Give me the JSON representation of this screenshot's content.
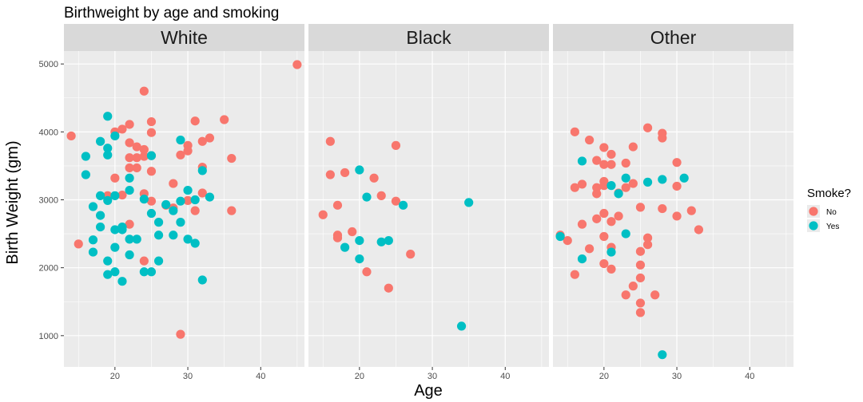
{
  "chart_data": {
    "type": "scatter",
    "title": "Birthweight by age and smoking",
    "xlabel": "Age",
    "ylabel": "Birth Weight (gm)",
    "xlim": [
      13,
      46
    ],
    "ylim": [
      540,
      5190
    ],
    "x_ticks": [
      20,
      30,
      40
    ],
    "y_ticks": [
      1000,
      2000,
      3000,
      4000,
      5000
    ],
    "grid": true,
    "legend": {
      "title": "Smoke?",
      "position": "right",
      "entries": [
        {
          "label": "No",
          "color": "#F8766D"
        },
        {
          "label": "Yes",
          "color": "#00BFC4"
        }
      ]
    },
    "panels": [
      {
        "name": "White",
        "series": [
          {
            "name": "No",
            "points": [
              [
                14,
                3940
              ],
              [
                15,
                2350
              ],
              [
                19,
                3060
              ],
              [
                20,
                3320
              ],
              [
                20,
                4000
              ],
              [
                21,
                3070
              ],
              [
                21,
                4040
              ],
              [
                22,
                4110
              ],
              [
                22,
                3840
              ],
              [
                22,
                3620
              ],
              [
                22,
                3470
              ],
              [
                22,
                2640
              ],
              [
                23,
                3780
              ],
              [
                23,
                3620
              ],
              [
                23,
                3470
              ],
              [
                24,
                4600
              ],
              [
                24,
                3740
              ],
              [
                24,
                3640
              ],
              [
                24,
                3090
              ],
              [
                24,
                2100
              ],
              [
                25,
                4150
              ],
              [
                25,
                3990
              ],
              [
                25,
                3420
              ],
              [
                25,
                2980
              ],
              [
                25,
                3650
              ],
              [
                27,
                2920
              ],
              [
                28,
                3240
              ],
              [
                28,
                2880
              ],
              [
                29,
                1020
              ],
              [
                29,
                3660
              ],
              [
                30,
                3800
              ],
              [
                30,
                3720
              ],
              [
                30,
                2990
              ],
              [
                31,
                4160
              ],
              [
                31,
                2840
              ],
              [
                32,
                3860
              ],
              [
                32,
                3480
              ],
              [
                32,
                3100
              ],
              [
                33,
                3910
              ],
              [
                35,
                4180
              ],
              [
                36,
                3610
              ],
              [
                36,
                2840
              ],
              [
                45,
                4990
              ]
            ]
          },
          {
            "name": "Yes",
            "points": [
              [
                16,
                3640
              ],
              [
                16,
                3370
              ],
              [
                17,
                2900
              ],
              [
                17,
                2410
              ],
              [
                17,
                2230
              ],
              [
                18,
                3860
              ],
              [
                18,
                3060
              ],
              [
                18,
                2770
              ],
              [
                18,
                2600
              ],
              [
                19,
                4230
              ],
              [
                19,
                3760
              ],
              [
                19,
                3660
              ],
              [
                19,
                2990
              ],
              [
                19,
                2100
              ],
              [
                19,
                1900
              ],
              [
                20,
                3940
              ],
              [
                20,
                3060
              ],
              [
                20,
                2560
              ],
              [
                20,
                2300
              ],
              [
                20,
                1940
              ],
              [
                21,
                2560
              ],
              [
                21,
                2600
              ],
              [
                21,
                1800
              ],
              [
                22,
                3320
              ],
              [
                22,
                3140
              ],
              [
                22,
                2420
              ],
              [
                22,
                2190
              ],
              [
                23,
                2420
              ],
              [
                24,
                3010
              ],
              [
                24,
                1940
              ],
              [
                25,
                3650
              ],
              [
                25,
                2800
              ],
              [
                25,
                1940
              ],
              [
                26,
                2670
              ],
              [
                26,
                2480
              ],
              [
                26,
                2100
              ],
              [
                27,
                2930
              ],
              [
                28,
                2840
              ],
              [
                28,
                2480
              ],
              [
                29,
                3880
              ],
              [
                29,
                2980
              ],
              [
                29,
                2670
              ],
              [
                30,
                3140
              ],
              [
                30,
                2420
              ],
              [
                31,
                3000
              ],
              [
                31,
                2360
              ],
              [
                32,
                3430
              ],
              [
                32,
                1820
              ],
              [
                33,
                3040
              ]
            ]
          }
        ]
      },
      {
        "name": "Black",
        "series": [
          {
            "name": "No",
            "points": [
              [
                15,
                2780
              ],
              [
                16,
                3860
              ],
              [
                16,
                3370
              ],
              [
                17,
                2920
              ],
              [
                17,
                2480
              ],
              [
                17,
                2440
              ],
              [
                18,
                3400
              ],
              [
                19,
                2530
              ],
              [
                21,
                1940
              ],
              [
                22,
                3320
              ],
              [
                23,
                3060
              ],
              [
                24,
                1700
              ],
              [
                25,
                3800
              ],
              [
                25,
                2980
              ],
              [
                27,
                2200
              ]
            ]
          },
          {
            "name": "Yes",
            "points": [
              [
                18,
                2300
              ],
              [
                20,
                3440
              ],
              [
                20,
                2400
              ],
              [
                20,
                2130
              ],
              [
                21,
                3040
              ],
              [
                23,
                2380
              ],
              [
                24,
                2400
              ],
              [
                26,
                2920
              ],
              [
                34,
                1140
              ],
              [
                35,
                2960
              ]
            ]
          }
        ]
      },
      {
        "name": "Other",
        "series": [
          {
            "name": "No",
            "points": [
              [
                14,
                2480
              ],
              [
                15,
                2400
              ],
              [
                16,
                4000
              ],
              [
                16,
                3180
              ],
              [
                16,
                1900
              ],
              [
                17,
                3230
              ],
              [
                17,
                2640
              ],
              [
                18,
                3880
              ],
              [
                18,
                2280
              ],
              [
                19,
                3580
              ],
              [
                19,
                3180
              ],
              [
                19,
                3090
              ],
              [
                19,
                2720
              ],
              [
                20,
                3770
              ],
              [
                20,
                3520
              ],
              [
                20,
                3270
              ],
              [
                20,
                3210
              ],
              [
                20,
                2800
              ],
              [
                20,
                2460
              ],
              [
                20,
                2060
              ],
              [
                21,
                3670
              ],
              [
                21,
                3520
              ],
              [
                21,
                2680
              ],
              [
                21,
                2300
              ],
              [
                21,
                1980
              ],
              [
                22,
                3100
              ],
              [
                22,
                2760
              ],
              [
                23,
                3540
              ],
              [
                23,
                3180
              ],
              [
                23,
                1600
              ],
              [
                24,
                3780
              ],
              [
                24,
                3240
              ],
              [
                24,
                1730
              ],
              [
                25,
                2890
              ],
              [
                25,
                2240
              ],
              [
                25,
                2040
              ],
              [
                25,
                1850
              ],
              [
                25,
                1480
              ],
              [
                25,
                1340
              ],
              [
                26,
                4060
              ],
              [
                26,
                2440
              ],
              [
                26,
                2340
              ],
              [
                27,
                1600
              ],
              [
                28,
                3980
              ],
              [
                28,
                3910
              ],
              [
                28,
                2870
              ],
              [
                30,
                3550
              ],
              [
                30,
                3200
              ],
              [
                30,
                2760
              ],
              [
                32,
                2840
              ],
              [
                33,
                2560
              ]
            ]
          },
          {
            "name": "Yes",
            "points": [
              [
                14,
                2460
              ],
              [
                17,
                3570
              ],
              [
                17,
                2130
              ],
              [
                21,
                3210
              ],
              [
                21,
                2230
              ],
              [
                22,
                3090
              ],
              [
                23,
                3320
              ],
              [
                23,
                2500
              ],
              [
                26,
                3260
              ],
              [
                28,
                3300
              ],
              [
                28,
                720
              ],
              [
                31,
                3320
              ]
            ]
          }
        ]
      }
    ]
  }
}
